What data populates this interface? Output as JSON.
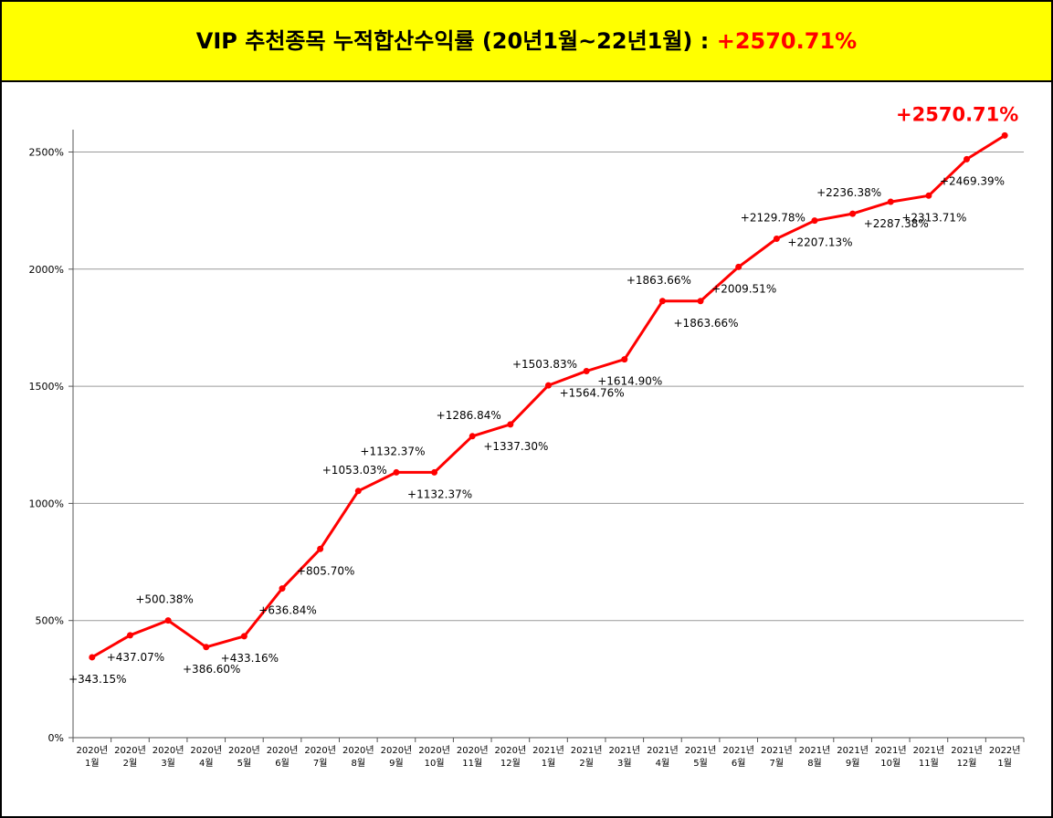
{
  "header": {
    "title": "VIP 추천종목 누적합산수익률 (20년1월~22년1월) : ",
    "highlight": "+2570.71%"
  },
  "colors": {
    "header_bg": "#ffff00",
    "line": "#ff0000",
    "highlight": "#ff0000"
  },
  "chart_data": {
    "type": "line",
    "title": "VIP 추천종목 누적합산수익률 (20년1월~22년1월) : +2570.71%",
    "categories": [
      [
        "2020년",
        "1월"
      ],
      [
        "2020년",
        "2월"
      ],
      [
        "2020년",
        "3월"
      ],
      [
        "2020년",
        "4월"
      ],
      [
        "2020년",
        "5월"
      ],
      [
        "2020년",
        "6월"
      ],
      [
        "2020년",
        "7월"
      ],
      [
        "2020년",
        "8월"
      ],
      [
        "2020년",
        "9월"
      ],
      [
        "2020년",
        "10월"
      ],
      [
        "2020년",
        "11월"
      ],
      [
        "2020년",
        "12월"
      ],
      [
        "2021년",
        "1월"
      ],
      [
        "2021년",
        "2월"
      ],
      [
        "2021년",
        "3월"
      ],
      [
        "2021년",
        "4월"
      ],
      [
        "2021년",
        "5월"
      ],
      [
        "2021년",
        "6월"
      ],
      [
        "2021년",
        "7월"
      ],
      [
        "2021년",
        "8월"
      ],
      [
        "2021년",
        "9월"
      ],
      [
        "2021년",
        "10월"
      ],
      [
        "2021년",
        "11월"
      ],
      [
        "2021년",
        "12월"
      ],
      [
        "2022년",
        "1월"
      ]
    ],
    "values": [
      343.15,
      437.07,
      500.38,
      386.6,
      433.16,
      636.84,
      805.7,
      1053.03,
      1132.37,
      1132.37,
      1286.84,
      1337.3,
      1503.83,
      1564.76,
      1614.9,
      1863.66,
      1863.66,
      2009.51,
      2129.78,
      2207.13,
      2236.38,
      2287.38,
      2313.71,
      2469.39,
      2570.71
    ],
    "labels": [
      "+343.15%",
      "+437.07%",
      "+500.38%",
      "+386.60%",
      "+433.16%",
      "+636.84%",
      "+805.70%",
      "+1053.03%",
      "+1132.37%",
      "+1132.37%",
      "+1286.84%",
      "+1337.30%",
      "+1503.83%",
      "+1564.76%",
      "+1614.90%",
      "+1863.66%",
      "+1863.66%",
      "+2009.51%",
      "+2129.78%",
      "+2207.13%",
      "+2236.38%",
      "+2287.38%",
      "+2313.71%",
      "+2469.39%",
      "+2570.71%"
    ],
    "label_side": [
      "below",
      "below",
      "above",
      "below",
      "below",
      "below",
      "below",
      "above",
      "above",
      "below",
      "above",
      "below",
      "above",
      "below",
      "below",
      "above",
      "below",
      "below",
      "above",
      "below",
      "above",
      "below",
      "below",
      "below",
      "above"
    ],
    "yticks": [
      "0%",
      "500%",
      "1000%",
      "1500%",
      "2000%",
      "2500%"
    ],
    "ylim": [
      0,
      2600
    ],
    "grid": true,
    "legend": "none",
    "xlabel": "",
    "ylabel": ""
  }
}
